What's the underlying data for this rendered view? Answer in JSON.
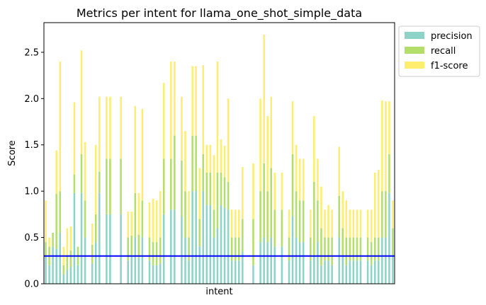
{
  "chart_data": {
    "type": "bar",
    "stacked": true,
    "title": "Metrics per intent for llama_one_shot_simple_data",
    "xlabel": "intent",
    "ylabel": "Score",
    "ylim": [
      0,
      2.82
    ],
    "yticks": [
      "0.0",
      "0.5",
      "1.0",
      "1.5",
      "2.0",
      "2.5"
    ],
    "threshold": {
      "value": 0.3,
      "color": "#0000ff"
    },
    "legend_position": "outside-right",
    "series": [
      {
        "name": "precision",
        "color": "#8dd3c7",
        "values": [
          0.3,
          0.2,
          0.4,
          0.38,
          0.55,
          0.1,
          0.15,
          0.18,
          0.98,
          0.2,
          0.98,
          0.5,
          0,
          0.22,
          0.45,
          0.98,
          0,
          0.75,
          0.75,
          0,
          0,
          0.75,
          0,
          0.25,
          0.3,
          0.5,
          0.28,
          0.5,
          0,
          0.25,
          0.2,
          0.2,
          0.22,
          0.75,
          0,
          0.8,
          0.8,
          0,
          0.73,
          0.5,
          0.25,
          1.0,
          1.0,
          0.4,
          1.0,
          0.85,
          0.85,
          0.5,
          0.6,
          0.85,
          0.82,
          0.8,
          0.25,
          0.25,
          0.25,
          0.35,
          0,
          0,
          0.2,
          0,
          0.45,
          0.5,
          0.45,
          0.5,
          0.4,
          0,
          0.4,
          0,
          0.25,
          0.73,
          0.5,
          0.45,
          0.45,
          0,
          0.25,
          0.3,
          0.45,
          0.2,
          0.25,
          0.25,
          0.2,
          0,
          0.5,
          0.3,
          0.2,
          0.25,
          0.25,
          0.25,
          0.25,
          0,
          0.25,
          0.2,
          0.25,
          0.25,
          0.5,
          0.5,
          0.98,
          0.3
        ]
      },
      {
        "name": "recall",
        "color": "#b3de69",
        "values": [
          0.15,
          0.2,
          0.15,
          0.59,
          0.45,
          0.1,
          0.15,
          0.18,
          0.2,
          0.2,
          0.42,
          0.4,
          0,
          0.2,
          0.3,
          0.23,
          0,
          0.6,
          0.6,
          0,
          0,
          0.6,
          0,
          0.25,
          0.22,
          0.48,
          0.25,
          0.4,
          0,
          0.25,
          0.25,
          0.25,
          0.28,
          0.6,
          0,
          0.55,
          0.8,
          0,
          0.6,
          0.5,
          0.25,
          0.6,
          0.6,
          0.3,
          0.4,
          0.35,
          0.35,
          0.3,
          0.6,
          0.35,
          0.33,
          0.3,
          0.25,
          0.25,
          0.25,
          0.35,
          0,
          0,
          0.5,
          0,
          0.55,
          0.8,
          0.55,
          0.75,
          0.4,
          0,
          0.4,
          0,
          0.25,
          0.67,
          0.5,
          0.45,
          0.45,
          0,
          0.25,
          0.8,
          0.45,
          0.4,
          0.25,
          0.25,
          0.3,
          0,
          0.45,
          0.3,
          0.3,
          0.25,
          0.25,
          0.25,
          0.25,
          0,
          0.25,
          0.25,
          0.25,
          0.25,
          0.5,
          0.5,
          0.42,
          0.3
        ]
      },
      {
        "name": "f1-score",
        "color": "#ffed6f",
        "values": [
          0.45,
          0.1,
          0.0,
          0.47,
          1.4,
          0.2,
          0.3,
          0.26,
          0.78,
          0.0,
          1.12,
          0.63,
          0,
          0.23,
          0.75,
          0.81,
          0,
          0.67,
          0.67,
          0,
          0,
          0.67,
          0,
          0.28,
          0.26,
          0.94,
          0.45,
          0.99,
          0,
          0.38,
          0.47,
          0.45,
          0.5,
          0.82,
          0,
          1.05,
          0.8,
          0,
          0.69,
          0.65,
          0.5,
          0.75,
          0.75,
          0.55,
          0.96,
          0.3,
          0.3,
          0.59,
          1.2,
          0.36,
          0.34,
          0.9,
          0.3,
          0.3,
          0.3,
          0.56,
          0,
          0,
          0.6,
          0,
          1.0,
          1.39,
          0.81,
          0.77,
          0.4,
          0,
          0.4,
          0,
          0.3,
          0.57,
          0.5,
          0.45,
          0.45,
          0,
          0.3,
          0.71,
          0.45,
          0.45,
          0.3,
          0.35,
          0.3,
          0,
          0.53,
          0.4,
          0.4,
          0.3,
          0.3,
          0.3,
          0.3,
          0,
          0.3,
          0.35,
          0.7,
          0.73,
          0.98,
          0.97,
          0.57,
          0.3
        ]
      }
    ]
  }
}
